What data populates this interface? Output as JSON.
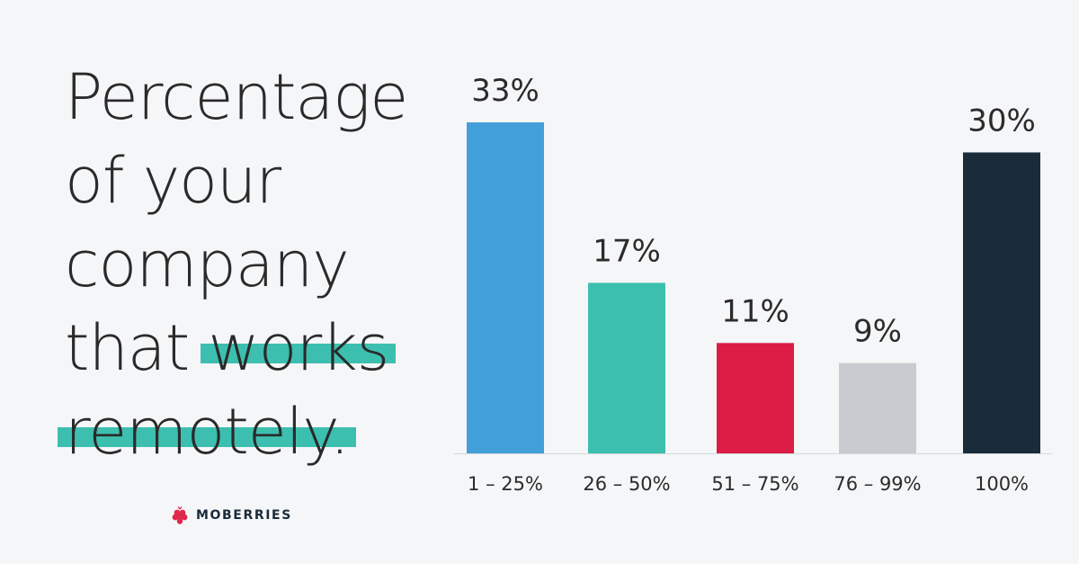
{
  "headline": {
    "line1": "Percentage",
    "line2": "of your",
    "line3": "company",
    "line4_plain": "that ",
    "line4_highlight": "works",
    "line5_highlight": "remotely."
  },
  "brand": {
    "name": "MOBERRIES",
    "logo_icon": "berry-icon",
    "color": "#e0294a"
  },
  "highlight_color": "#3dbfb0",
  "chart_data": {
    "type": "bar",
    "categories": [
      "1 – 25%",
      "26 – 50%",
      "51 – 75%",
      "76 – 99%",
      "100%"
    ],
    "values": [
      33,
      17,
      11,
      9,
      30
    ],
    "value_labels": [
      "33%",
      "17%",
      "11%",
      "9%",
      "30%"
    ],
    "colors": [
      "#439fd9",
      "#3dbfb0",
      "#dc1c44",
      "#c8ccd0",
      "#1a2b3a"
    ],
    "title": "",
    "xlabel": "",
    "ylabel": "",
    "ylim": [
      0,
      33
    ],
    "grid": false,
    "legend": "none"
  }
}
